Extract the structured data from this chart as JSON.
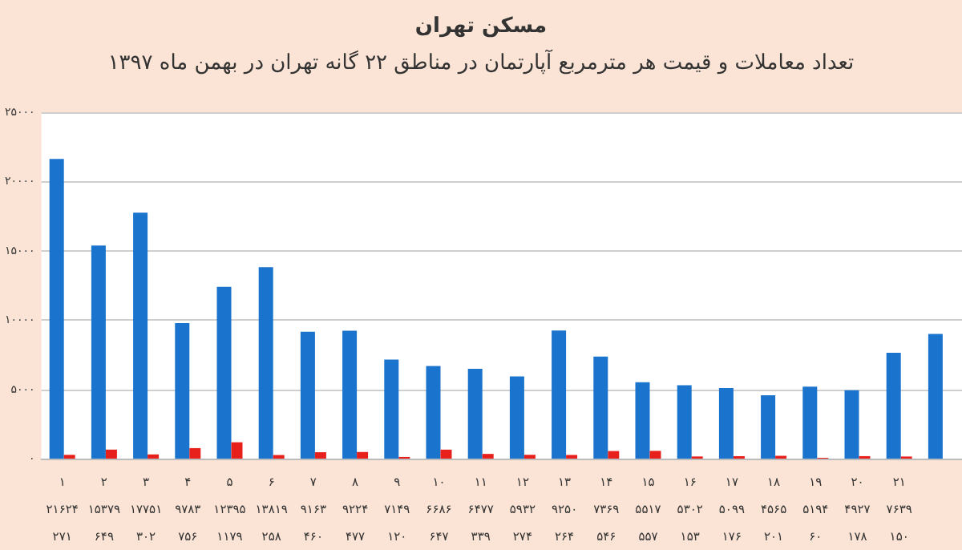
{
  "chart_data": {
    "type": "bar",
    "title": "مسکن تهران",
    "subtitle": "تعداد معاملات و قیمت هر مترمربع آپارتمان در مناطق ۲۲ گانه تهران در بهمن ماه ۱۳۹۷",
    "categories": [
      "۱",
      "۲",
      "۳",
      "۴",
      "۵",
      "۶",
      "۷",
      "۸",
      "۹",
      "۱۰",
      "۱۱",
      "۱۲",
      "۱۳",
      "۱۴",
      "۱۵",
      "۱۶",
      "۱۷",
      "۱۸",
      "۱۹",
      "۲۰",
      "۲۱",
      null
    ],
    "series": [
      {
        "color": "#1a73cc",
        "values": [
          21624,
          15379,
          17751,
          9783,
          12395,
          13819,
          9163,
          9224,
          7149,
          6686,
          6477,
          5932,
          9250,
          7369,
          5517,
          5302,
          5099,
          4565,
          5194,
          4927,
          7639,
          9000
        ],
        "value_labels": [
          "۲۱۶۲۴",
          "۱۵۳۷۹",
          "۱۷۷۵۱",
          "۹۷۸۳",
          "۱۲۳۹۵",
          "۱۳۸۱۹",
          "۹۱۶۳",
          "۹۲۲۴",
          "۷۱۴۹",
          "۶۶۸۶",
          "۶۴۷۷",
          "۵۹۳۲",
          "۹۲۵۰",
          "۷۳۶۹",
          "۵۵۱۷",
          "۵۳۰۲",
          "۵۰۹۹",
          "۴۵۶۵",
          "۵۱۹۴",
          "۴۹۲۷",
          "۷۶۳۹",
          null
        ]
      },
      {
        "color": "#e8201c",
        "values": [
          271,
          649,
          302,
          756,
          1179,
          258,
          460,
          477,
          120,
          647,
          339,
          274,
          264,
          546,
          557,
          153,
          176,
          201,
          60,
          178,
          150,
          null
        ],
        "value_labels": [
          "۲۷۱",
          "۶۴۹",
          "۳۰۲",
          "۷۵۶",
          "۱۱۷۹",
          "۲۵۸",
          "۴۶۰",
          "۴۷۷",
          "۱۲۰",
          "۶۴۷",
          "۳۳۹",
          "۲۷۴",
          "۲۶۴",
          "۵۴۶",
          "۵۵۷",
          "۱۵۳",
          "۱۷۶",
          "۲۰۱",
          "۶۰",
          "۱۷۸",
          "۱۵۰",
          null
        ]
      }
    ],
    "ylim": [
      0,
      25000
    ],
    "yticks": [
      {
        "value": 0,
        "label": "۰"
      },
      {
        "value": 5000,
        "label": "۵۰۰۰"
      },
      {
        "value": 10000,
        "label": "۱۰۰۰۰"
      },
      {
        "value": 15000,
        "label": "۱۵۰۰۰"
      },
      {
        "value": 20000,
        "label": "۲۰۰۰۰"
      },
      {
        "value": 25000,
        "label": "۲۵۰۰۰"
      }
    ],
    "grid": "y"
  }
}
